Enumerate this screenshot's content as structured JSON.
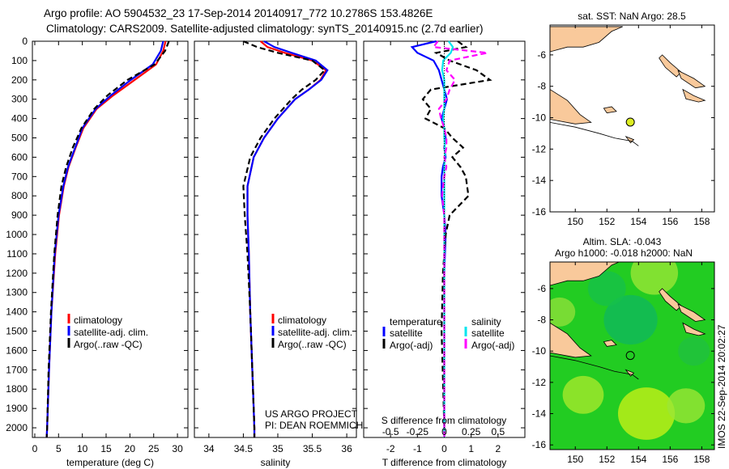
{
  "title": {
    "line1": "Argo profile: AO 5904532_23 17-Sep-2014 20140917_772 10.2786S 153.4826E",
    "line2": "Climatology: CARS2009. Satellite-adjusted climatology: synTS_20140915.nc (2.7d earlier)"
  },
  "credit": {
    "project": "US ARGO PROJECT",
    "pi": "PI: DEAN ROEMMICH"
  },
  "timestamp": "IMOS 22-Sep-2014 20:02:27",
  "colors": {
    "clim": "#ff0000",
    "sat": "#0000ff",
    "argo": "#000000",
    "s_sat": "#00e5ee",
    "s_argo": "#ff00ff",
    "land": "#f9c99b"
  },
  "chart_data": [
    {
      "type": "line",
      "name": "temperature-profile",
      "xlabel": "temperature (deg C)",
      "ylabel": "",
      "xlim": [
        -0.5,
        32.2
      ],
      "ylim": [
        2050,
        0
      ],
      "xticks": [
        0,
        5,
        10,
        15,
        20,
        25,
        30
      ],
      "yticks": [
        0,
        100,
        200,
        300,
        400,
        500,
        600,
        700,
        800,
        900,
        1000,
        1100,
        1200,
        1300,
        1400,
        1500,
        1600,
        1700,
        1800,
        1900,
        2000
      ],
      "legend": [
        "climatology",
        "satellite-adj. clim.",
        "Argo(..raw -QC)"
      ],
      "depth": [
        0,
        50,
        120,
        200,
        280,
        350,
        450,
        550,
        650,
        750,
        900,
        1100,
        1400,
        1700,
        2000,
        2050
      ],
      "series": [
        {
          "name": "climatology",
          "values": [
            27.5,
            27,
            25.5,
            21,
            16.5,
            13,
            10.2,
            8.6,
            7.1,
            6.1,
            5.1,
            4.3,
            3.5,
            3.0,
            2.6,
            2.5
          ]
        },
        {
          "name": "satellite-adj. clim.",
          "values": [
            27,
            26.5,
            24.8,
            20.2,
            16,
            12.8,
            10,
            8.5,
            7,
            6,
            5,
            4.2,
            3.5,
            3.0,
            2.6,
            2.5
          ]
        },
        {
          "name": "Argo(..raw -QC)",
          "values": [
            28.2,
            27.4,
            25.2,
            19.5,
            15.3,
            12.5,
            9.8,
            8.0,
            6.6,
            5.6,
            4.8,
            4.1,
            3.4,
            2.9,
            2.6,
            2.5
          ]
        }
      ]
    },
    {
      "type": "line",
      "name": "salinity-profile",
      "xlabel": "salinity",
      "xlim": [
        33.79,
        36.14
      ],
      "ylim": [
        2050,
        0
      ],
      "xticks": [
        34,
        34.5,
        35,
        35.5,
        36
      ],
      "legend": [
        "climatology",
        "satellite-adj. clim.",
        "Argo(..raw -QC)"
      ],
      "depth": [
        0,
        30,
        60,
        100,
        150,
        200,
        250,
        300,
        400,
        500,
        600,
        750,
        900,
        1100,
        1400,
        1700,
        2000,
        2050
      ],
      "series": [
        {
          "name": "climatology",
          "values": [
            34.75,
            34.85,
            35.1,
            35.5,
            35.7,
            35.62,
            35.45,
            35.25,
            35.0,
            34.8,
            34.65,
            34.56,
            34.56,
            34.58,
            34.6,
            34.63,
            34.66,
            34.66
          ]
        },
        {
          "name": "satellite-adj. clim.",
          "values": [
            34.8,
            34.95,
            35.2,
            35.55,
            35.72,
            35.63,
            35.45,
            35.25,
            35.0,
            34.8,
            34.65,
            34.56,
            34.56,
            34.58,
            34.6,
            34.63,
            34.66,
            34.66
          ]
        },
        {
          "name": "Argo(..raw -QC)",
          "values": [
            34.5,
            34.7,
            35.0,
            35.5,
            35.68,
            35.55,
            35.35,
            35.2,
            34.95,
            34.75,
            34.6,
            34.5,
            34.52,
            34.56,
            34.6,
            34.63,
            34.66,
            34.66
          ]
        }
      ]
    },
    {
      "type": "line",
      "name": "difference-profile",
      "xlabel": "T difference from climatology",
      "x2label": "S difference from climatology",
      "xlim": [
        -3,
        3
      ],
      "ylim": [
        2050,
        0
      ],
      "xticks": [
        -2,
        -1,
        0,
        1,
        2
      ],
      "x2ticks": [
        -0.5,
        -0.25,
        0,
        0.25,
        0.5
      ],
      "legend_t": {
        "header": "temperature",
        "items": [
          "satellite",
          "Argo(-adj)"
        ]
      },
      "legend_s": {
        "header": "salinity",
        "items": [
          "satellite",
          "Argo(-adj)"
        ]
      },
      "depth": [
        0,
        30,
        60,
        100,
        150,
        200,
        250,
        300,
        350,
        400,
        450,
        500,
        550,
        600,
        650,
        700,
        800,
        900,
        1000,
        1200,
        1500,
        2000,
        2050
      ],
      "series": [
        {
          "name": "T satellite",
          "var": "T",
          "values": [
            -0.3,
            -1.2,
            -1.0,
            -0.4,
            -0.2,
            -0.1,
            0,
            0.1,
            0,
            -0.1,
            0,
            0.05,
            0,
            0.05,
            -0.05,
            -0.1,
            -0.1,
            0,
            0.05,
            0,
            0,
            0,
            0
          ]
        },
        {
          "name": "T Argo(-adj)",
          "var": "T",
          "values": [
            0.5,
            0.8,
            -0.3,
            0.2,
            1.2,
            1.7,
            -0.5,
            -0.8,
            -0.5,
            -0.7,
            0.0,
            0.3,
            0.7,
            0.3,
            0.6,
            0.8,
            0.9,
            0.2,
            0.05,
            -0.05,
            -0.1,
            0,
            0
          ]
        },
        {
          "name": "S satellite",
          "var": "S",
          "values": [
            0.04,
            0.08,
            0.06,
            -0.01,
            -0.02,
            0,
            0,
            0,
            0,
            -0.01,
            0,
            0,
            0.005,
            0.005,
            0,
            0,
            0,
            0,
            0,
            0,
            0,
            0,
            0
          ]
        },
        {
          "name": "S Argo(-adj)",
          "var": "S",
          "values": [
            -0.06,
            -0.1,
            0.4,
            0.05,
            0.02,
            0.1,
            0.05,
            0.02,
            -0.05,
            -0.03,
            0.0,
            0.02,
            0.02,
            0.0,
            0.02,
            0.0,
            -0.02,
            0.0,
            0.0,
            0,
            0,
            0,
            0
          ]
        }
      ]
    },
    {
      "type": "map",
      "name": "sst-map",
      "title": "sat. SST: NaN Argo: 28.5",
      "xlim": [
        148.4,
        158.8
      ],
      "ylim": [
        -16,
        -4.1
      ],
      "xticks": [
        150,
        152,
        154,
        156,
        158
      ],
      "yticks": [
        -6,
        -8,
        -10,
        -12,
        -14,
        -16
      ],
      "float_position": [
        153.48,
        -10.28
      ]
    },
    {
      "type": "heatmap",
      "name": "sla-map",
      "title1": "Altim. SLA: -0.043",
      "title2": "Argo h1000: -0.018 h2000: NaN",
      "xlim": [
        148.4,
        158.8
      ],
      "ylim": [
        -16.3,
        -4.3
      ],
      "xticks": [
        150,
        152,
        154,
        156,
        158
      ],
      "yticks": [
        -6,
        -8,
        -10,
        -12,
        -14,
        -16
      ],
      "float_position": [
        153.48,
        -10.28
      ]
    }
  ]
}
